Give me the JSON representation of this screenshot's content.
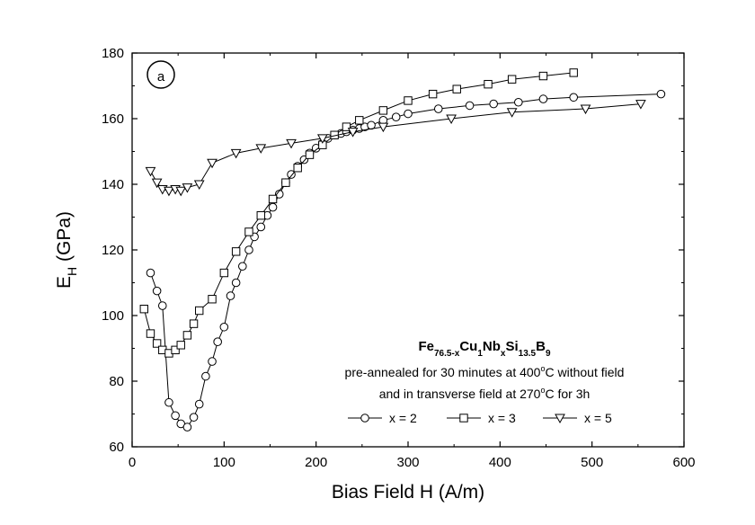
{
  "chart_data": {
    "type": "scatter",
    "panel_label": "a",
    "xlabel": "Bias Field H (A/m)",
    "ylabel_main": "E",
    "ylabel_sub": "H",
    "ylabel_unit": " (GPa)",
    "xlim": [
      0,
      600
    ],
    "ylim": [
      60,
      180
    ],
    "xticks": [
      0,
      100,
      200,
      300,
      400,
      500,
      600
    ],
    "yticks": [
      60,
      80,
      100,
      120,
      140,
      160,
      180
    ],
    "grid": false,
    "legend_placement": "bottom-right",
    "annotation": {
      "formula": [
        {
          "text": "Fe",
          "sub": false
        },
        {
          "text": "76.5-x",
          "sub": true
        },
        {
          "text": "Cu",
          "sub": false
        },
        {
          "text": "1",
          "sub": true
        },
        {
          "text": "Nb",
          "sub": false
        },
        {
          "text": "x",
          "sub": true
        },
        {
          "text": "Si",
          "sub": false
        },
        {
          "text": "13.5",
          "sub": true
        },
        {
          "text": "B",
          "sub": false
        },
        {
          "text": "9",
          "sub": true
        }
      ],
      "line2": [
        {
          "text": "pre-annealed for 30 minutes at 400",
          "sup": false
        },
        {
          "text": "o",
          "sup": true
        },
        {
          "text": "C without field",
          "sup": false
        }
      ],
      "line3": [
        {
          "text": "and in transverse field at 270",
          "sup": false
        },
        {
          "text": "o",
          "sup": true
        },
        {
          "text": "C for 3h",
          "sup": false
        }
      ]
    },
    "series": [
      {
        "name": "x = 2",
        "marker": "circle",
        "x": [
          20,
          27,
          33,
          40,
          47,
          53,
          60,
          67,
          73,
          80,
          87,
          93,
          100,
          107,
          113,
          120,
          127,
          133,
          140,
          147,
          153,
          160,
          167,
          173,
          180,
          187,
          193,
          200,
          207,
          213,
          220,
          227,
          233,
          240,
          247,
          253,
          260,
          273,
          287,
          300,
          333,
          367,
          393,
          420,
          447,
          480,
          575
        ],
        "y": [
          113,
          107.5,
          103,
          73.5,
          69.5,
          67,
          66,
          69,
          73,
          81.5,
          86,
          92,
          96.5,
          106,
          110,
          115,
          120,
          124,
          127,
          130.5,
          133,
          137,
          140.5,
          143,
          145.5,
          147.5,
          149.5,
          151,
          152.5,
          154,
          155,
          155.5,
          156,
          156.5,
          157,
          157.5,
          158,
          159.5,
          160.5,
          161.5,
          163,
          164,
          164.5,
          165,
          166,
          166.5,
          167.5
        ]
      },
      {
        "name": "x = 3",
        "marker": "square",
        "x": [
          13,
          20,
          27,
          33,
          40,
          47,
          53,
          60,
          67,
          73,
          87,
          100,
          113,
          127,
          140,
          153,
          167,
          180,
          193,
          207,
          220,
          233,
          247,
          273,
          300,
          327,
          353,
          387,
          413,
          447,
          480
        ],
        "y": [
          102,
          94.5,
          91.5,
          89.5,
          88.5,
          89.5,
          91,
          94,
          97.5,
          101.5,
          105,
          113,
          119.5,
          125.5,
          130.5,
          135.5,
          140.5,
          145,
          149,
          152,
          155,
          157.5,
          159.5,
          162.5,
          165.5,
          167.5,
          169,
          170.5,
          172,
          173,
          174
        ]
      },
      {
        "name": "x = 5",
        "marker": "triangle-down",
        "x": [
          20,
          27,
          33,
          40,
          47,
          53,
          60,
          73,
          87,
          113,
          140,
          173,
          207,
          240,
          273,
          347,
          413,
          493,
          553
        ],
        "y": [
          144,
          140.5,
          138.5,
          138,
          138.5,
          138,
          139,
          140,
          146.5,
          149.5,
          151,
          152.5,
          154,
          156,
          157.5,
          160,
          162,
          163,
          164.5
        ]
      }
    ]
  }
}
